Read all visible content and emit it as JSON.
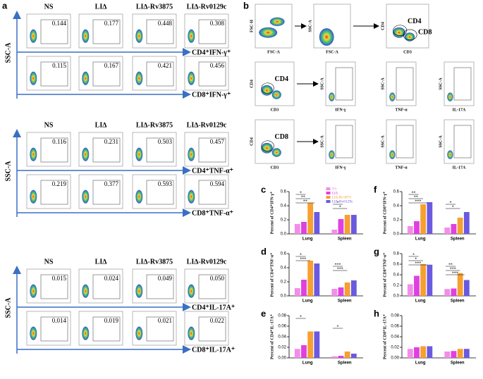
{
  "panel_a": {
    "letter": "a",
    "axis_label": "SSC-A",
    "groups": [
      "NS",
      "LI∆",
      "LI∆-Rv3875",
      "LI∆-Rv0129c"
    ],
    "blocks": [
      {
        "rows": [
          {
            "label": "CD4⁺IFN-γ⁺",
            "values": [
              "0.144",
              "0.177",
              "0.448",
              "0.308"
            ]
          },
          {
            "label": "CD8⁺IFN-γ⁺",
            "values": [
              "0.115",
              "0.167",
              "0.421",
              "0.456"
            ]
          }
        ]
      },
      {
        "rows": [
          {
            "label": "CD4⁺TNF-α⁺",
            "values": [
              "0.116",
              "0.231",
              "0.503",
              "0.457"
            ]
          },
          {
            "label": "CD8⁺TNF-α⁺",
            "values": [
              "0.219",
              "0.377",
              "0.593",
              "0.594"
            ]
          }
        ]
      },
      {
        "rows": [
          {
            "label": "CD4⁺IL-17A⁺",
            "values": [
              "0.015",
              "0.024",
              "0.049",
              "0.050"
            ]
          },
          {
            "label": "CD8⁺IL-17A⁺",
            "values": [
              "0.014",
              "0.019",
              "0.021",
              "0.022"
            ]
          }
        ]
      }
    ]
  },
  "panel_b": {
    "letter": "b",
    "rows": [
      [
        {
          "x": "FSC-A",
          "y": "FSC-H"
        },
        {
          "x": "FSC-A",
          "y": "SSC-A"
        },
        {
          "x": "CD3",
          "y": "CD4",
          "gates": [
            "CD4",
            "CD8"
          ]
        }
      ],
      [
        {
          "x": "CD3",
          "y": "CD4",
          "gates": [
            "CD4"
          ]
        },
        {
          "x": "IFN-γ",
          "y": "SSC-A"
        },
        {
          "x": "TNF-α",
          "y": "SSC-A"
        },
        {
          "x": "IL-17A",
          "y": "SSC-A"
        }
      ],
      [
        {
          "x": "CD3",
          "y": "CD4",
          "gates": [
            "CD8"
          ]
        },
        {
          "x": "IFN-γ",
          "y": "SSC-A"
        },
        {
          "x": "TNF-α",
          "y": "SSC-A"
        },
        {
          "x": "IL-17A",
          "y": "SSC-A"
        }
      ]
    ]
  },
  "chart_data": [
    {
      "type": "bar",
      "letter": "c",
      "y_label": "Percent of CD4⁺IFN-γ⁺",
      "categories": [
        "Lung",
        "Spleen"
      ],
      "ylim": [
        0,
        0.6
      ],
      "yticks": [
        {
          "value": 0,
          "label": "0.0"
        },
        0.2,
        0.4,
        0.6
      ],
      "annotations": [
        "*",
        "**",
        "**",
        "*",
        "*"
      ],
      "series": [
        {
          "name": "NS",
          "color": "#f28ee8",
          "values": [
            0.14,
            0.06
          ]
        },
        {
          "name": "LI∆",
          "color": "#e040e0",
          "values": [
            0.17,
            0.21
          ]
        },
        {
          "name": "LI∆-Rv3875",
          "color": "#f5a030",
          "values": [
            0.44,
            0.27
          ]
        },
        {
          "name": "LI∆-Rv0129c",
          "color": "#6a5ae0",
          "values": [
            0.31,
            0.27
          ]
        }
      ]
    },
    {
      "type": "bar",
      "letter": "d",
      "y_label": "Percent of CD4⁺TNF-α⁺",
      "categories": [
        "Lung",
        "Spleen"
      ],
      "ylim": [
        0,
        0.6
      ],
      "yticks": [
        {
          "value": 0,
          "label": "0.0"
        },
        0.2,
        0.4,
        0.6
      ],
      "annotations": [
        "*",
        "***",
        "***",
        "***"
      ],
      "series": [
        {
          "color": "#f28ee8",
          "values": [
            0.11,
            0.1
          ]
        },
        {
          "color": "#e040e0",
          "values": [
            0.23,
            0.12
          ]
        },
        {
          "color": "#f5a030",
          "values": [
            0.5,
            0.19
          ]
        },
        {
          "color": "#6a5ae0",
          "values": [
            0.46,
            0.22
          ]
        }
      ]
    },
    {
      "type": "bar",
      "letter": "e",
      "y_label": "Percent of CD4⁺IL-17A⁺",
      "categories": [
        "Lung",
        "Spleen"
      ],
      "ylim": [
        0,
        0.08
      ],
      "yticks": [
        {
          "value": 0,
          "label": "0.00"
        },
        0.02,
        0.04,
        0.06,
        0.08
      ],
      "annotations": [
        "*",
        "*"
      ],
      "series": [
        {
          "color": "#f28ee8",
          "values": [
            0.017,
            0.003
          ]
        },
        {
          "color": "#e040e0",
          "values": [
            0.024,
            0.004
          ]
        },
        {
          "color": "#f5a030",
          "values": [
            0.05,
            0.012
          ]
        },
        {
          "color": "#6a5ae0",
          "values": [
            0.05,
            0.008
          ]
        }
      ]
    },
    {
      "type": "bar",
      "letter": "f",
      "y_label": "Percent of CD8⁺IFN-γ⁺",
      "categories": [
        "Lung",
        "Spleen"
      ],
      "ylim": [
        0,
        0.6
      ],
      "yticks": [
        {
          "value": 0,
          "label": "0.0"
        },
        0.2,
        0.4,
        0.6
      ],
      "annotations": [
        "**",
        "**",
        "***",
        "*",
        "*"
      ],
      "series": [
        {
          "color": "#f28ee8",
          "values": [
            0.11,
            0.09
          ]
        },
        {
          "color": "#e040e0",
          "values": [
            0.18,
            0.14
          ]
        },
        {
          "color": "#f5a030",
          "values": [
            0.42,
            0.23
          ]
        },
        {
          "color": "#6a5ae0",
          "values": [
            0.45,
            0.31
          ]
        }
      ]
    },
    {
      "type": "bar",
      "letter": "g",
      "y_label": "Percent of CD8⁺TNF-α⁺",
      "categories": [
        "Lung",
        "Spleen"
      ],
      "ylim": [
        0,
        0.8
      ],
      "yticks": [
        {
          "value": 0,
          "label": "0.0"
        },
        0.2,
        0.4,
        0.6,
        0.8
      ],
      "annotations": [
        "*",
        "*",
        "***",
        "**",
        "***",
        "***"
      ],
      "series": [
        {
          "color": "#f28ee8",
          "values": [
            0.22,
            0.13
          ]
        },
        {
          "color": "#e040e0",
          "values": [
            0.38,
            0.14
          ]
        },
        {
          "color": "#f5a030",
          "values": [
            0.6,
            0.43
          ]
        },
        {
          "color": "#6a5ae0",
          "values": [
            0.59,
            0.3
          ]
        }
      ]
    },
    {
      "type": "bar",
      "letter": "h",
      "y_label": "Percent of CD8⁺IL-17A⁺",
      "categories": [
        "Lung",
        "Spleen"
      ],
      "ylim": [
        0,
        0.08
      ],
      "yticks": [
        {
          "value": 0,
          "label": "0.00"
        },
        0.02,
        0.04,
        0.06,
        0.08
      ],
      "series": [
        {
          "color": "#f28ee8",
          "values": [
            0.017,
            0.012
          ]
        },
        {
          "color": "#e040e0",
          "values": [
            0.02,
            0.013
          ]
        },
        {
          "color": "#f5a030",
          "values": [
            0.022,
            0.017
          ]
        },
        {
          "color": "#6a5ae0",
          "values": [
            0.022,
            0.017
          ]
        }
      ]
    }
  ]
}
